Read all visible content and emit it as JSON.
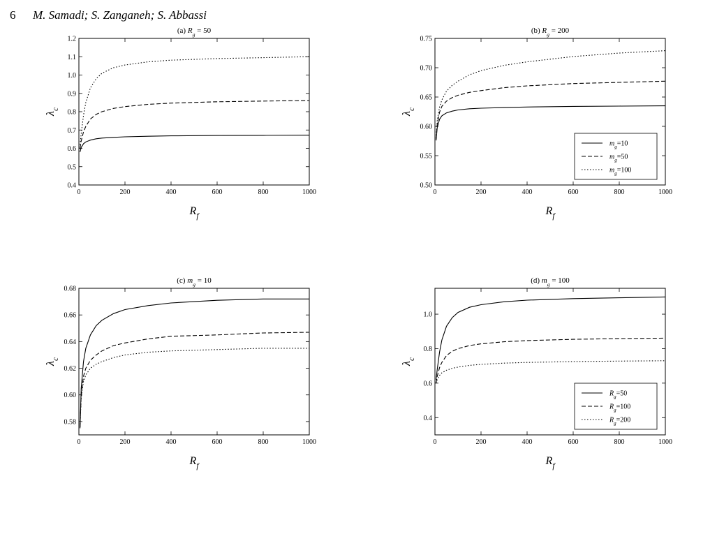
{
  "header": {
    "page_number": "6",
    "authors": "M. Samadi; S. Zanganeh; S. Abbassi"
  },
  "chart_data": [
    {
      "id": "a",
      "type": "line",
      "title_prefix": "(a) ",
      "title_var": "R",
      "title_sub": "g",
      "title_rest": " = 50",
      "xlabel_var": "R",
      "xlabel_sub": "f",
      "ylabel_var": "λ",
      "ylabel_sub": "c",
      "xlim": [
        0,
        1000
      ],
      "ylim": [
        0.4,
        1.2
      ],
      "xticks": [
        0,
        200,
        400,
        600,
        800,
        1000
      ],
      "yticks": [
        "0.4",
        "0.5",
        "0.6",
        "0.7",
        "0.8",
        "0.9",
        "1.0",
        "1.1",
        "1.2"
      ],
      "legend": null,
      "series": [
        {
          "style": "solid",
          "x": [
            5,
            10,
            20,
            30,
            50,
            75,
            100,
            150,
            200,
            300,
            400,
            600,
            800,
            1000
          ],
          "y": [
            0.58,
            0.605,
            0.625,
            0.635,
            0.645,
            0.652,
            0.656,
            0.66,
            0.663,
            0.666,
            0.668,
            0.67,
            0.671,
            0.672
          ]
        },
        {
          "style": "dashed",
          "x": [
            5,
            10,
            20,
            30,
            50,
            75,
            100,
            150,
            200,
            300,
            400,
            600,
            800,
            1000
          ],
          "y": [
            0.6,
            0.64,
            0.69,
            0.72,
            0.76,
            0.785,
            0.8,
            0.818,
            0.828,
            0.84,
            0.847,
            0.854,
            0.858,
            0.861
          ]
        },
        {
          "style": "dotted",
          "x": [
            5,
            10,
            20,
            30,
            50,
            75,
            100,
            150,
            200,
            300,
            400,
            600,
            800,
            1000
          ],
          "y": [
            0.62,
            0.68,
            0.78,
            0.85,
            0.93,
            0.98,
            1.01,
            1.04,
            1.055,
            1.072,
            1.081,
            1.09,
            1.095,
            1.1
          ]
        }
      ]
    },
    {
      "id": "b",
      "type": "line",
      "title_prefix": "(b) ",
      "title_var": "R",
      "title_sub": "g",
      "title_rest": " = 200",
      "xlabel_var": "R",
      "xlabel_sub": "f",
      "ylabel_var": "λ",
      "ylabel_sub": "c",
      "xlim": [
        0,
        1000
      ],
      "ylim": [
        0.5,
        0.75
      ],
      "xticks": [
        0,
        200,
        400,
        600,
        800,
        1000
      ],
      "yticks": [
        "0.50",
        "0.55",
        "0.60",
        "0.65",
        "0.70",
        "0.75"
      ],
      "legend": {
        "position": "bottom-right",
        "entries": [
          {
            "style": "solid",
            "var": "m",
            "sub": "g",
            "rest": "=10"
          },
          {
            "style": "dashed",
            "var": "m",
            "sub": "g",
            "rest": "=50"
          },
          {
            "style": "dotted",
            "var": "m",
            "sub": "g",
            "rest": "=100"
          }
        ]
      },
      "series": [
        {
          "style": "solid",
          "x": [
            5,
            10,
            20,
            30,
            50,
            75,
            100,
            150,
            200,
            300,
            400,
            600,
            800,
            1000
          ],
          "y": [
            0.576,
            0.598,
            0.612,
            0.618,
            0.623,
            0.626,
            0.628,
            0.63,
            0.631,
            0.632,
            0.633,
            0.634,
            0.6345,
            0.635
          ]
        },
        {
          "style": "dashed",
          "x": [
            5,
            10,
            20,
            30,
            50,
            75,
            100,
            150,
            200,
            300,
            400,
            600,
            800,
            1000
          ],
          "y": [
            0.578,
            0.604,
            0.624,
            0.634,
            0.643,
            0.649,
            0.653,
            0.658,
            0.661,
            0.666,
            0.669,
            0.673,
            0.675,
            0.677
          ]
        },
        {
          "style": "dotted",
          "x": [
            5,
            10,
            20,
            30,
            50,
            75,
            100,
            150,
            200,
            300,
            400,
            600,
            800,
            1000
          ],
          "y": [
            0.58,
            0.61,
            0.633,
            0.645,
            0.66,
            0.67,
            0.677,
            0.688,
            0.695,
            0.704,
            0.71,
            0.719,
            0.725,
            0.729
          ]
        }
      ]
    },
    {
      "id": "c",
      "type": "line",
      "title_prefix": "(c) ",
      "title_var": "m",
      "title_sub": "g",
      "title_rest": " = 10",
      "xlabel_var": "R",
      "xlabel_sub": "f",
      "ylabel_var": "λ",
      "ylabel_sub": "c",
      "xlim": [
        0,
        1000
      ],
      "ylim": [
        0.57,
        0.68
      ],
      "xticks": [
        0,
        200,
        400,
        600,
        800,
        1000
      ],
      "yticks": [
        "0.58",
        "0.60",
        "0.62",
        "0.64",
        "0.66",
        "0.68"
      ],
      "legend": null,
      "series": [
        {
          "style": "solid",
          "x": [
            5,
            10,
            20,
            30,
            50,
            75,
            100,
            150,
            200,
            300,
            400,
            600,
            800,
            1000
          ],
          "y": [
            0.575,
            0.605,
            0.625,
            0.635,
            0.645,
            0.652,
            0.656,
            0.661,
            0.664,
            0.667,
            0.669,
            0.671,
            0.672,
            0.672
          ]
        },
        {
          "style": "dashed",
          "x": [
            5,
            10,
            20,
            30,
            50,
            75,
            100,
            150,
            200,
            300,
            400,
            600,
            800,
            1000
          ],
          "y": [
            0.576,
            0.6,
            0.614,
            0.62,
            0.626,
            0.63,
            0.633,
            0.637,
            0.639,
            0.642,
            0.644,
            0.645,
            0.6465,
            0.647
          ]
        },
        {
          "style": "dotted",
          "x": [
            5,
            10,
            20,
            30,
            50,
            75,
            100,
            150,
            200,
            300,
            400,
            600,
            800,
            1000
          ],
          "y": [
            0.576,
            0.598,
            0.61,
            0.615,
            0.62,
            0.623,
            0.625,
            0.628,
            0.63,
            0.632,
            0.633,
            0.634,
            0.635,
            0.635
          ]
        }
      ]
    },
    {
      "id": "d",
      "type": "line",
      "title_prefix": "(d) ",
      "title_var": "m",
      "title_sub": "g",
      "title_rest": " = 100",
      "xlabel_var": "R",
      "xlabel_sub": "f",
      "ylabel_var": "λ",
      "ylabel_sub": "c",
      "xlim": [
        0,
        1000
      ],
      "ylim": [
        0.3,
        1.15
      ],
      "xticks": [
        0,
        200,
        400,
        600,
        800,
        1000
      ],
      "yticks": [
        "0.4",
        "0.6",
        "0.8",
        "1.0"
      ],
      "legend": {
        "position": "bottom-right",
        "entries": [
          {
            "style": "solid",
            "var": "R",
            "sub": "g",
            "rest": "=50"
          },
          {
            "style": "dashed",
            "var": "R",
            "sub": "g",
            "rest": "=100"
          },
          {
            "style": "dotted",
            "var": "R",
            "sub": "g",
            "rest": "=200"
          }
        ]
      },
      "series": [
        {
          "style": "solid",
          "x": [
            5,
            10,
            20,
            30,
            50,
            75,
            100,
            150,
            200,
            300,
            400,
            600,
            800,
            1000
          ],
          "y": [
            0.62,
            0.68,
            0.78,
            0.85,
            0.93,
            0.98,
            1.01,
            1.04,
            1.055,
            1.072,
            1.081,
            1.09,
            1.095,
            1.1
          ]
        },
        {
          "style": "dashed",
          "x": [
            5,
            10,
            20,
            30,
            50,
            75,
            100,
            150,
            200,
            300,
            400,
            600,
            800,
            1000
          ],
          "y": [
            0.6,
            0.64,
            0.69,
            0.72,
            0.76,
            0.785,
            0.8,
            0.818,
            0.828,
            0.84,
            0.847,
            0.854,
            0.858,
            0.861
          ]
        },
        {
          "style": "dotted",
          "x": [
            5,
            10,
            20,
            30,
            50,
            75,
            100,
            150,
            200,
            300,
            400,
            600,
            800,
            1000
          ],
          "y": [
            0.6,
            0.62,
            0.645,
            0.66,
            0.675,
            0.686,
            0.693,
            0.703,
            0.709,
            0.716,
            0.72,
            0.725,
            0.728,
            0.73
          ]
        }
      ]
    }
  ]
}
